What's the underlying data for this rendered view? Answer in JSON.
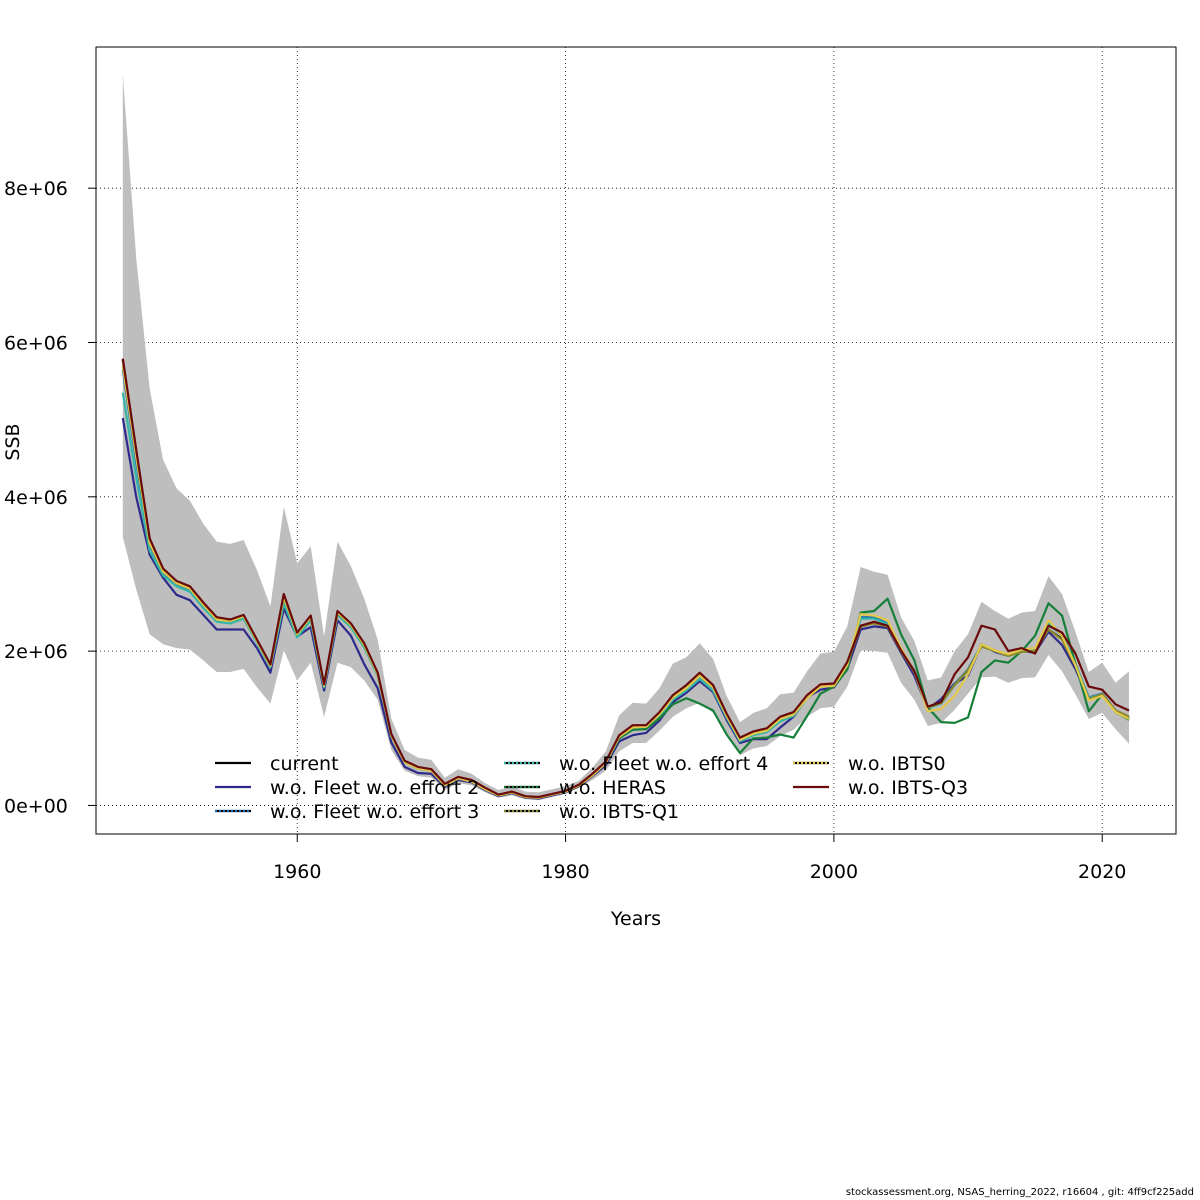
{
  "footer": "stockassessment.org, NSAS_herring_2022, r16604 , git: 4ff9cf225add",
  "colors": {
    "ci_band": "#bebebe",
    "grid": "#000000",
    "current": "#000000",
    "w.o. Fleet w.o. effort 2": "#2e2a8c",
    "w.o. Fleet w.o. effort 3": "#1f6fb4",
    "w.o. Fleet w.o. effort 4": "#36b6a8",
    "w.o. HERAS": "#16803a",
    "w.o. IBTS-Q1": "#8c8a2a",
    "w.o. IBTS0": "#e3c84a",
    "w.o. IBTS-Q3": "#6b0a0a"
  },
  "chart_data": {
    "type": "line",
    "title": "",
    "xlabel": "Years",
    "ylabel": "SSB",
    "xlim": [
      1945,
      2025.5
    ],
    "ylim": [
      -370000,
      9830000
    ],
    "xticks": [
      1960,
      1980,
      2000,
      2020
    ],
    "xtick_labels": [
      "1960",
      "1980",
      "2000",
      "2020"
    ],
    "yticks": [
      0,
      2000000,
      4000000,
      6000000,
      8000000
    ],
    "ytick_labels": [
      "0e+00",
      "2e+06",
      "4e+06",
      "6e+06",
      "8e+06"
    ],
    "grid": true,
    "legend_position": "bottom-left, inside plot",
    "legend": [
      "current",
      "w.o. Fleet w.o. effort 2",
      "w.o. Fleet w.o. effort 3",
      "w.o. Fleet w.o. effort 4",
      "w.o. HERAS",
      "w.o. IBTS-Q1",
      "w.o. IBTS0",
      "w.o. IBTS-Q3"
    ],
    "legend_styles": [
      "solid",
      "solid",
      "dotted",
      "dotted",
      "dotted",
      "dotted",
      "dotted",
      "solid"
    ],
    "x": [
      1947,
      1948,
      1949,
      1950,
      1951,
      1952,
      1953,
      1954,
      1955,
      1956,
      1957,
      1958,
      1959,
      1960,
      1961,
      1962,
      1963,
      1964,
      1965,
      1966,
      1967,
      1968,
      1969,
      1970,
      1971,
      1972,
      1973,
      1974,
      1975,
      1976,
      1977,
      1978,
      1979,
      1980,
      1981,
      1982,
      1983,
      1984,
      1985,
      1986,
      1987,
      1988,
      1989,
      1990,
      1991,
      1992,
      1993,
      1994,
      1995,
      1996,
      1997,
      1998,
      1999,
      2000,
      2001,
      2002,
      2003,
      2004,
      2005,
      2006,
      2007,
      2008,
      2009,
      2010,
      2011,
      2012,
      2013,
      2014,
      2015,
      2016,
      2017,
      2018,
      2019,
      2020,
      2021,
      2022
    ],
    "confidence_band": {
      "name": "confidence interval",
      "upper": [
        9470000,
        7100000,
        5400000,
        4480000,
        4110000,
        3950000,
        3650000,
        3420000,
        3390000,
        3440000,
        3050000,
        2580000,
        3870000,
        3140000,
        3360000,
        2190000,
        3420000,
        3100000,
        2680000,
        2150000,
        1130000,
        720000,
        620000,
        590000,
        360000,
        470000,
        410000,
        290000,
        200000,
        250000,
        180000,
        170000,
        210000,
        250000,
        320000,
        490000,
        700000,
        1170000,
        1330000,
        1320000,
        1520000,
        1840000,
        1920000,
        2100000,
        1900000,
        1420000,
        1080000,
        1200000,
        1260000,
        1440000,
        1460000,
        1740000,
        1970000,
        1990000,
        2320000,
        3090000,
        3030000,
        2990000,
        2440000,
        2130000,
        1620000,
        1660000,
        2000000,
        2220000,
        2640000,
        2520000,
        2420000,
        2500000,
        2520000,
        2970000,
        2740000,
        2250000,
        1730000,
        1850000,
        1590000,
        1740000
      ],
      "lower": [
        3480000,
        2800000,
        2220000,
        2090000,
        2040000,
        2020000,
        1880000,
        1730000,
        1730000,
        1770000,
        1530000,
        1320000,
        2010000,
        1620000,
        1850000,
        1150000,
        1850000,
        1790000,
        1620000,
        1370000,
        720000,
        450000,
        380000,
        360000,
        200000,
        290000,
        260000,
        170000,
        100000,
        130000,
        80000,
        70000,
        110000,
        150000,
        230000,
        330000,
        450000,
        700000,
        810000,
        810000,
        970000,
        1150000,
        1260000,
        1330000,
        1200000,
        900000,
        650000,
        740000,
        770000,
        900000,
        980000,
        1150000,
        1260000,
        1280000,
        1540000,
        2010000,
        2000000,
        1980000,
        1590000,
        1370000,
        1030000,
        1070000,
        1240000,
        1450000,
        1660000,
        1670000,
        1590000,
        1650000,
        1660000,
        1950000,
        1740000,
        1440000,
        1120000,
        1200000,
        990000,
        800000
      ]
    },
    "series": [
      {
        "name": "current",
        "values": [
          5780000,
          4600000,
          3450000,
          3060000,
          2900000,
          2830000,
          2620000,
          2430000,
          2400000,
          2460000,
          2140000,
          1820000,
          2730000,
          2230000,
          2450000,
          1560000,
          2510000,
          2350000,
          2090000,
          1710000,
          920000,
          570000,
          490000,
          460000,
          270000,
          360000,
          320000,
          220000,
          130000,
          170000,
          110000,
          100000,
          140000,
          180000,
          260000,
          400000,
          560000,
          900000,
          1030000,
          1030000,
          1200000,
          1420000,
          1550000,
          1710000,
          1550000,
          1180000,
          870000,
          950000,
          990000,
          1140000,
          1200000,
          1420000,
          1560000,
          1570000,
          1850000,
          2320000,
          2370000,
          2320000,
          2000000,
          1730000,
          1270000,
          1330000,
          1570000,
          1760000,
          2070000,
          2000000,
          1940000,
          2000000,
          2000000,
          2280000,
          2160000,
          1810000,
          1380000,
          1440000,
          1230000,
          1150000
        ]
      },
      {
        "name": "w.o. Fleet w.o. effort 2",
        "values": [
          5020000,
          4000000,
          3250000,
          2950000,
          2730000,
          2660000,
          2470000,
          2280000,
          2280000,
          2280000,
          2040000,
          1720000,
          2550000,
          2190000,
          2310000,
          1490000,
          2400000,
          2200000,
          1830000,
          1520000,
          820000,
          500000,
          420000,
          410000,
          240000,
          330000,
          300000,
          200000,
          120000,
          160000,
          100000,
          90000,
          130000,
          170000,
          250000,
          380000,
          520000,
          830000,
          910000,
          940000,
          1100000,
          1340000,
          1460000,
          1610000,
          1470000,
          1110000,
          810000,
          860000,
          860000,
          1010000,
          1150000,
          1400000,
          1500000,
          1530000,
          1770000,
          2280000,
          2320000,
          2300000,
          1980000,
          1680000,
          1250000,
          1380000,
          1580000,
          1680000,
          2090000,
          1990000,
          1940000,
          2000000,
          1980000,
          2250000,
          2080000,
          1770000,
          1380000,
          1440000,
          1230000,
          1130000
        ]
      },
      {
        "name": "w.o. Fleet w.o. effort 3",
        "values": [
          5650000,
          4450000,
          3380000,
          3010000,
          2870000,
          2800000,
          2600000,
          2420000,
          2390000,
          2440000,
          2130000,
          1810000,
          2700000,
          2220000,
          2440000,
          1550000,
          2500000,
          2330000,
          2070000,
          1700000,
          910000,
          560000,
          480000,
          450000,
          260000,
          350000,
          310000,
          210000,
          130000,
          170000,
          110000,
          100000,
          140000,
          180000,
          260000,
          390000,
          550000,
          880000,
          1000000,
          1010000,
          1170000,
          1390000,
          1510000,
          1660000,
          1510000,
          1150000,
          840000,
          920000,
          960000,
          1100000,
          1170000,
          1400000,
          1550000,
          1560000,
          1830000,
          2440000,
          2440000,
          2360000,
          2020000,
          1750000,
          1270000,
          1330000,
          1570000,
          1760000,
          2080000,
          2010000,
          1950000,
          2010000,
          2020000,
          2380000,
          2220000,
          1840000,
          1400000,
          1450000,
          1230000,
          1120000
        ]
      },
      {
        "name": "w.o. Fleet w.o. effort 4",
        "values": [
          5350000,
          4250000,
          3300000,
          2980000,
          2840000,
          2770000,
          2560000,
          2380000,
          2360000,
          2420000,
          2110000,
          1790000,
          2620000,
          2180000,
          2400000,
          1530000,
          2470000,
          2310000,
          2050000,
          1680000,
          900000,
          560000,
          480000,
          450000,
          260000,
          350000,
          310000,
          210000,
          130000,
          170000,
          110000,
          100000,
          140000,
          180000,
          260000,
          390000,
          550000,
          870000,
          990000,
          1000000,
          1160000,
          1370000,
          1490000,
          1640000,
          1490000,
          1140000,
          830000,
          910000,
          950000,
          1090000,
          1160000,
          1390000,
          1540000,
          1550000,
          1820000,
          2420000,
          2420000,
          2350000,
          2010000,
          1740000,
          1260000,
          1320000,
          1560000,
          1750000,
          2060000,
          2000000,
          1940000,
          2000000,
          2010000,
          2360000,
          2200000,
          1830000,
          1390000,
          1440000,
          1220000,
          1110000
        ]
      },
      {
        "name": "w.o. HERAS",
        "values": [
          5700000,
          4550000,
          3400000,
          3030000,
          2880000,
          2810000,
          2600000,
          2410000,
          2390000,
          2450000,
          2130000,
          1810000,
          2700000,
          2220000,
          2440000,
          1550000,
          2490000,
          2340000,
          2070000,
          1700000,
          910000,
          560000,
          480000,
          450000,
          260000,
          350000,
          310000,
          210000,
          130000,
          170000,
          110000,
          100000,
          140000,
          180000,
          260000,
          390000,
          550000,
          870000,
          980000,
          990000,
          1130000,
          1310000,
          1390000,
          1320000,
          1230000,
          920000,
          680000,
          870000,
          880000,
          920000,
          880000,
          1160000,
          1450000,
          1540000,
          1760000,
          2500000,
          2520000,
          2680000,
          2220000,
          1880000,
          1270000,
          1080000,
          1070000,
          1140000,
          1730000,
          1880000,
          1850000,
          2000000,
          2200000,
          2620000,
          2460000,
          1840000,
          1220000,
          1440000,
          1210000,
          1110000
        ]
      },
      {
        "name": "w.o. IBTS-Q1",
        "values": [
          5770000,
          4590000,
          3440000,
          3050000,
          2900000,
          2830000,
          2620000,
          2430000,
          2400000,
          2460000,
          2140000,
          1820000,
          2720000,
          2230000,
          2450000,
          1560000,
          2510000,
          2350000,
          2090000,
          1710000,
          920000,
          570000,
          490000,
          460000,
          270000,
          360000,
          320000,
          220000,
          130000,
          170000,
          110000,
          100000,
          140000,
          180000,
          260000,
          400000,
          560000,
          900000,
          1020000,
          1030000,
          1190000,
          1410000,
          1540000,
          1700000,
          1540000,
          1170000,
          860000,
          940000,
          980000,
          1130000,
          1190000,
          1410000,
          1550000,
          1560000,
          1840000,
          2320000,
          2360000,
          2320000,
          2000000,
          1730000,
          1270000,
          1330000,
          1560000,
          1750000,
          2060000,
          2000000,
          1940000,
          1990000,
          2000000,
          2280000,
          2150000,
          1810000,
          1380000,
          1440000,
          1230000,
          1150000
        ]
      },
      {
        "name": "w.o. IBTS0",
        "values": [
          5700000,
          4520000,
          3400000,
          3030000,
          2880000,
          2810000,
          2600000,
          2410000,
          2390000,
          2450000,
          2130000,
          1810000,
          2700000,
          2220000,
          2440000,
          1550000,
          2500000,
          2340000,
          2080000,
          1700000,
          910000,
          560000,
          480000,
          450000,
          260000,
          350000,
          310000,
          210000,
          130000,
          170000,
          110000,
          100000,
          140000,
          180000,
          260000,
          390000,
          550000,
          890000,
          1010000,
          1020000,
          1180000,
          1400000,
          1520000,
          1680000,
          1530000,
          1160000,
          850000,
          930000,
          970000,
          1120000,
          1180000,
          1390000,
          1540000,
          1550000,
          1820000,
          2480000,
          2460000,
          2400000,
          2040000,
          1740000,
          1220000,
          1250000,
          1420000,
          1700000,
          2090000,
          2010000,
          1960000,
          2020000,
          2040000,
          2400000,
          2200000,
          1820000,
          1360000,
          1420000,
          1210000,
          1120000
        ]
      },
      {
        "name": "w.o. IBTS-Q3",
        "values": [
          5790000,
          4610000,
          3460000,
          3070000,
          2910000,
          2840000,
          2630000,
          2440000,
          2410000,
          2470000,
          2150000,
          1830000,
          2740000,
          2240000,
          2460000,
          1570000,
          2520000,
          2360000,
          2100000,
          1720000,
          930000,
          580000,
          500000,
          470000,
          280000,
          370000,
          330000,
          230000,
          140000,
          180000,
          120000,
          110000,
          150000,
          190000,
          270000,
          410000,
          570000,
          910000,
          1040000,
          1040000,
          1210000,
          1430000,
          1560000,
          1720000,
          1560000,
          1190000,
          880000,
          960000,
          1000000,
          1150000,
          1210000,
          1430000,
          1570000,
          1580000,
          1860000,
          2330000,
          2380000,
          2330000,
          2010000,
          1740000,
          1280000,
          1340000,
          1700000,
          1920000,
          2330000,
          2280000,
          2000000,
          2040000,
          1970000,
          2330000,
          2240000,
          1970000,
          1540000,
          1500000,
          1310000,
          1230000
        ]
      }
    ]
  }
}
